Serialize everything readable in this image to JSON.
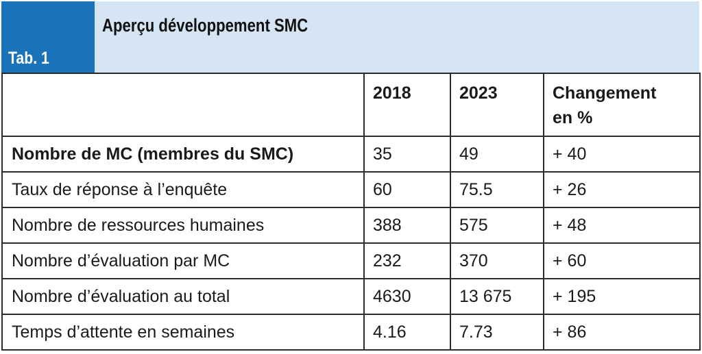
{
  "header": {
    "tab_label": "Tab. 1",
    "title": "Aperçu développement SMC"
  },
  "table": {
    "columns": [
      "",
      "2018",
      "2023",
      "Changement en %"
    ],
    "column_header_lines": {
      "changement_line1": "Changement",
      "changement_line2": "en %"
    },
    "rows": [
      {
        "label": "Nombre de MC (membres du SMC)",
        "v2018": "35",
        "v2023": "49",
        "change": "+ 40",
        "bold": true
      },
      {
        "label": "Taux de réponse à l’enquête",
        "v2018": "60",
        "v2023": "75.5",
        "change": "+ 26",
        "bold": false
      },
      {
        "label": "Nombre de ressources humaines",
        "v2018": "388",
        "v2023": "575",
        "change": "+ 48",
        "bold": false
      },
      {
        "label": "Nombre d’évaluation par MC",
        "v2018": "232",
        "v2023": "370",
        "change": "+ 60",
        "bold": false
      },
      {
        "label": "Nombre d’évaluation au total",
        "v2018": "4630",
        "v2023": "13 675",
        "change": "+ 195",
        "bold": false
      },
      {
        "label": "Temps d’attente en semaines",
        "v2018": "4.16",
        "v2023": "7.73",
        "change": "+ 86",
        "bold": false
      }
    ]
  },
  "colors": {
    "header_background": "#d5e5f4",
    "tab_background": "#1a73b9",
    "border": "#2a2a2a"
  }
}
